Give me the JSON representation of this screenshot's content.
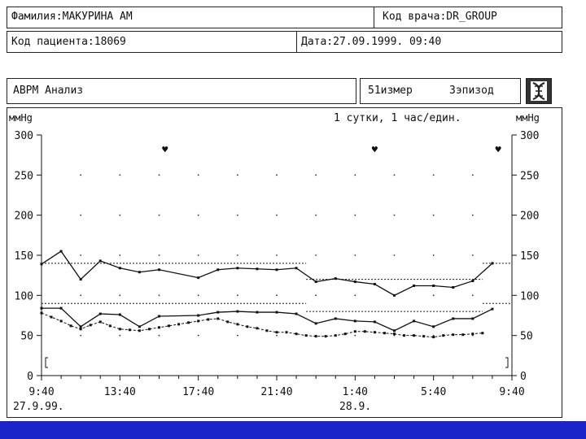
{
  "header": {
    "surname": "Фамилия:МАКУРИНА АМ",
    "doctor_code": "Код врача:DR_GROUP",
    "patient_code": "Код пациента:18069",
    "date": "Дата:27.09.1999. 09:40"
  },
  "analysis_bar": {
    "title": "ABPM Анализ",
    "measurements": "51измер",
    "episodes": "3эпизод",
    "icon": "dna-helix-icon"
  },
  "chart_data": {
    "type": "line",
    "unit_left": "ммHg",
    "unit_right": "ммHg",
    "subtitle": "1 сутки, 1 час/един.",
    "ylim": [
      0,
      300
    ],
    "y_ticks": [
      0,
      50,
      100,
      150,
      200,
      250,
      300
    ],
    "x_ticks": [
      "9:40",
      "13:40",
      "17:40",
      "21:40",
      "1:40",
      "5:40",
      "9:40"
    ],
    "x_dates": [
      "27.9.99.",
      "28.9."
    ],
    "grid": "dotted",
    "episode_markers": [
      "♥",
      "♥",
      "♥"
    ],
    "series": [
      {
        "values": [
          [
            0,
            139
          ],
          [
            1,
            155
          ],
          [
            2,
            120
          ],
          [
            3,
            143
          ],
          [
            4,
            134
          ],
          [
            5,
            129
          ],
          [
            6,
            132
          ],
          [
            8,
            122
          ],
          [
            9,
            132
          ],
          [
            10,
            134
          ],
          [
            11,
            133
          ],
          [
            12,
            132
          ],
          [
            13,
            134
          ],
          [
            14,
            117
          ],
          [
            15,
            121
          ],
          [
            16,
            117
          ],
          [
            17,
            114
          ],
          [
            18,
            100
          ],
          [
            19,
            112
          ],
          [
            20,
            112
          ],
          [
            21,
            110
          ],
          [
            22,
            118
          ],
          [
            23,
            140
          ]
        ]
      },
      {
        "values": [
          [
            0,
            84
          ],
          [
            1,
            84
          ],
          [
            2,
            61
          ],
          [
            3,
            77
          ],
          [
            4,
            76
          ],
          [
            5,
            61
          ],
          [
            6,
            74
          ],
          [
            8,
            75
          ],
          [
            9,
            79
          ],
          [
            10,
            80
          ],
          [
            11,
            79
          ],
          [
            12,
            79
          ],
          [
            13,
            77
          ],
          [
            14,
            65
          ],
          [
            15,
            71
          ],
          [
            16,
            68
          ],
          [
            17,
            67
          ],
          [
            18,
            56
          ],
          [
            19,
            68
          ],
          [
            20,
            61
          ],
          [
            21,
            71
          ],
          [
            22,
            71
          ],
          [
            23,
            83
          ]
        ]
      },
      {
        "values": [
          [
            0,
            78
          ],
          [
            0.5,
            73
          ],
          [
            1,
            68
          ],
          [
            1.5,
            62
          ],
          [
            2,
            58
          ],
          [
            2.5,
            63
          ],
          [
            3,
            67
          ],
          [
            3.5,
            62
          ],
          [
            4,
            58
          ],
          [
            4.5,
            57
          ],
          [
            5,
            56
          ],
          [
            5.5,
            58
          ],
          [
            6,
            60
          ],
          [
            6.5,
            62
          ],
          [
            7,
            64
          ],
          [
            7.5,
            66
          ],
          [
            8,
            68
          ],
          [
            8.5,
            70
          ],
          [
            9,
            71
          ],
          [
            9.5,
            67
          ],
          [
            10,
            64
          ],
          [
            10.5,
            61
          ],
          [
            11,
            59
          ],
          [
            11.5,
            56
          ],
          [
            12,
            54
          ],
          [
            12.5,
            54
          ],
          [
            13,
            52
          ],
          [
            13.5,
            50
          ],
          [
            14,
            49
          ],
          [
            14.5,
            49
          ],
          [
            15,
            50
          ],
          [
            15.5,
            52
          ],
          [
            16,
            55
          ],
          [
            16.5,
            55
          ],
          [
            17,
            54
          ],
          [
            17.5,
            53
          ],
          [
            18,
            52
          ],
          [
            18.5,
            50
          ],
          [
            19,
            50
          ],
          [
            19.5,
            49
          ],
          [
            20,
            48
          ],
          [
            20.5,
            50
          ],
          [
            21,
            51
          ],
          [
            21.5,
            51
          ],
          [
            22,
            52
          ],
          [
            22.5,
            53
          ]
        ]
      }
    ],
    "thresholds": [
      {
        "from": 0,
        "to": 13.5,
        "value": 140
      },
      {
        "from": 13.5,
        "to": 22.5,
        "value": 120
      },
      {
        "from": 22.5,
        "to": 24,
        "value": 140
      },
      {
        "from": 0,
        "to": 13.5,
        "value": 90
      },
      {
        "from": 13.5,
        "to": 22.5,
        "value": 80
      },
      {
        "from": 22.5,
        "to": 24,
        "value": 90
      }
    ]
  }
}
